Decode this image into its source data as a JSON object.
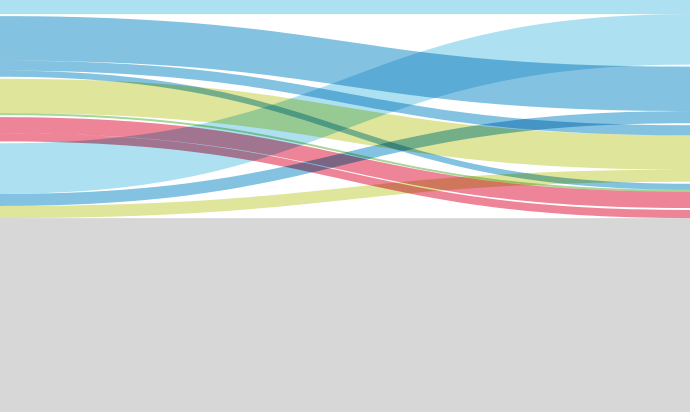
{
  "chart_data": {
    "type": "sankey",
    "title": "",
    "colors": {
      "light_blue": "#9fdcf0",
      "blue": "#6fb7dc",
      "yellow_green": "#d9e08a",
      "pink": "#ea6f85",
      "gray": "#d7d7d7",
      "green": "#99cf84"
    },
    "left_nodes": [
      {
        "id": "L1",
        "color_key": "light_blue",
        "value": 3.5
      },
      {
        "id": "L2",
        "color_key": "blue",
        "value": 15
      },
      {
        "id": "L3",
        "color_key": "yellow_green",
        "value": 9
      },
      {
        "id": "L4",
        "color_key": "pink",
        "value": 6
      },
      {
        "id": "L5",
        "color_key": "gray",
        "value": 66.5
      }
    ],
    "right_nodes": [
      {
        "id": "R1",
        "color_key": "light_blue",
        "value": 16
      },
      {
        "id": "R2",
        "color_key": "blue",
        "value": 14
      },
      {
        "id": "R3",
        "color_key": "yellow_green",
        "value": 14
      },
      {
        "id": "R4",
        "color_key": "pink",
        "value": 6
      },
      {
        "id": "R5",
        "color_key": "gray",
        "value": 50
      }
    ],
    "flows": [
      {
        "from": "L1",
        "to": "R1",
        "value": 3.5,
        "color_key": "light_blue"
      },
      {
        "from": "L2",
        "to": "R2",
        "value": 11,
        "color_key": "blue"
      },
      {
        "from": "L2",
        "to": "R3",
        "value": 2.5,
        "color_key": "blue"
      },
      {
        "from": "L2",
        "to": "R4",
        "value": 1.5,
        "color_key": "blue"
      },
      {
        "from": "L3",
        "to": "R3",
        "value": 8.5,
        "color_key": "yellow_green"
      },
      {
        "from": "L3",
        "to": "R4",
        "value": 0.5,
        "color_key": "green"
      },
      {
        "from": "L4",
        "to": "R4",
        "value": 4,
        "color_key": "pink"
      },
      {
        "from": "L4",
        "to": "R5",
        "value": 2,
        "color_key": "pink"
      },
      {
        "from": "L5",
        "to": "R1",
        "value": 12.5,
        "color_key": "light_blue"
      },
      {
        "from": "L5",
        "to": "R2",
        "value": 3,
        "color_key": "blue"
      },
      {
        "from": "L5",
        "to": "R3",
        "value": 3,
        "color_key": "yellow_green"
      },
      {
        "from": "L5",
        "to": "R5",
        "value": 48,
        "color_key": "gray"
      }
    ],
    "grid": false,
    "legend": "none"
  }
}
